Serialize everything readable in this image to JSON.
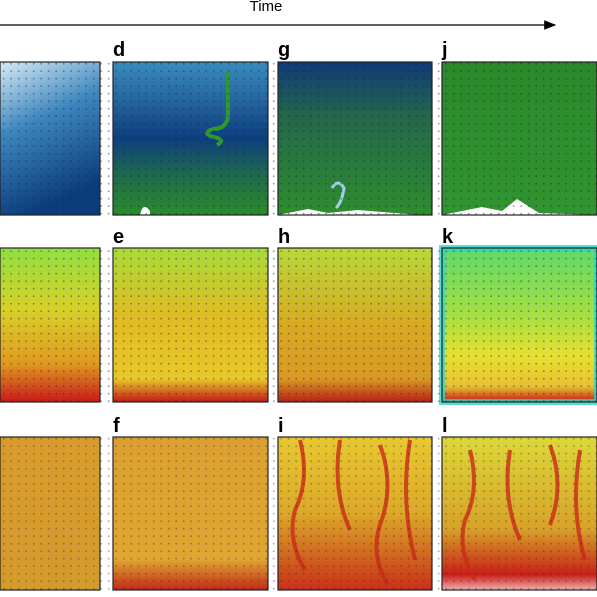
{
  "header": {
    "axis_label": "Time"
  },
  "panels": [
    {
      "label": "d"
    },
    {
      "label": "e"
    },
    {
      "label": "f"
    },
    {
      "label": "g"
    },
    {
      "label": "h"
    },
    {
      "label": "i"
    },
    {
      "label": "j"
    },
    {
      "label": "k"
    },
    {
      "label": "l"
    }
  ]
}
